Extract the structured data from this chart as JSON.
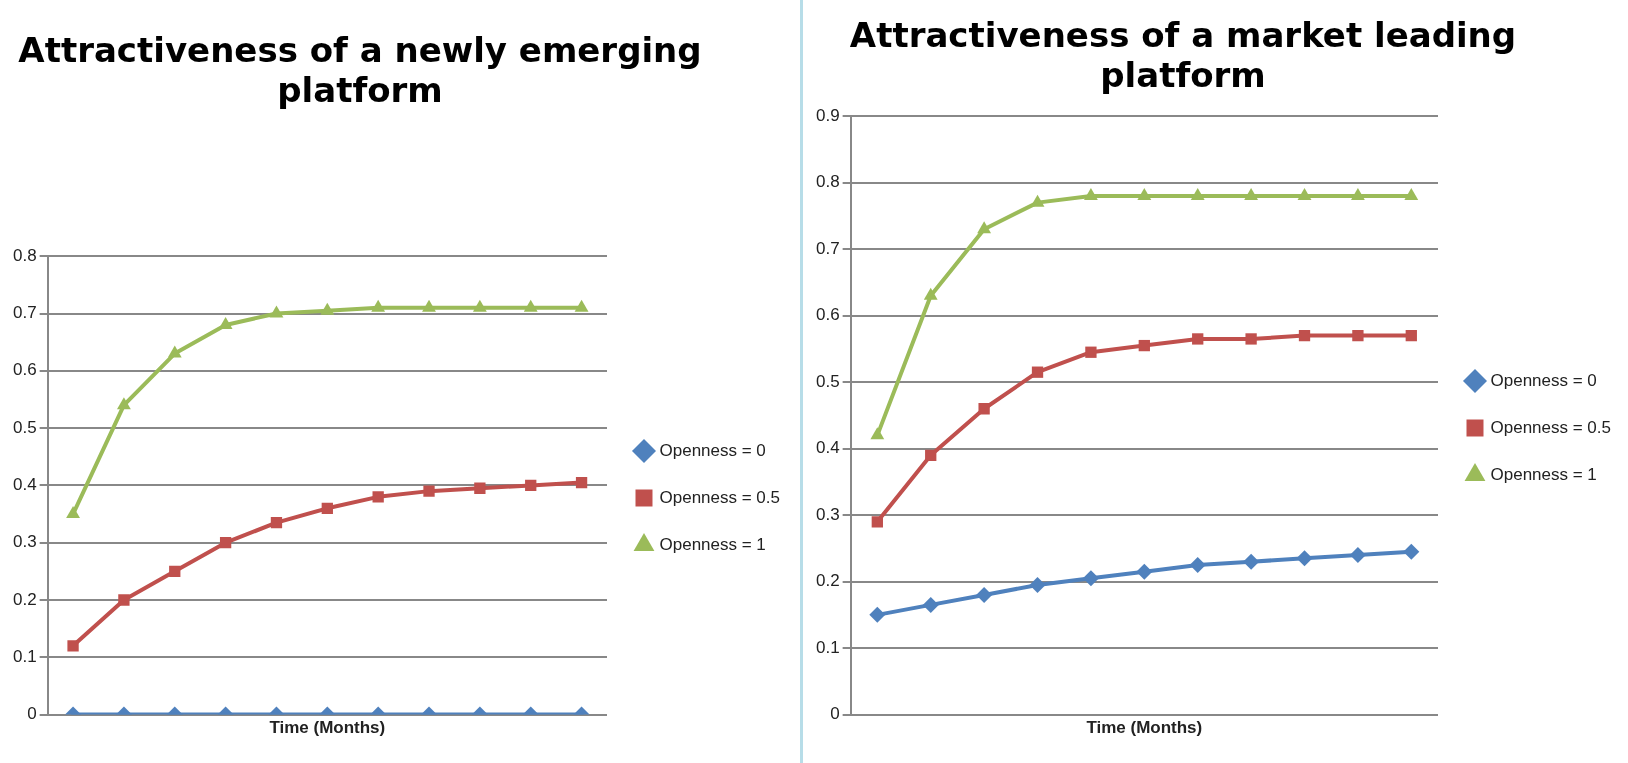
{
  "chart_data": [
    {
      "type": "line",
      "title": "Attractiveness of a newly emerging platform",
      "xlabel": "Time (Months)",
      "categories": [
        null,
        null,
        null,
        null,
        null,
        null,
        null,
        null,
        null,
        null,
        null
      ],
      "ylim": [
        0,
        0.8
      ],
      "yticks": [
        0,
        0.1,
        0.2,
        0.3,
        0.4,
        0.5,
        0.6,
        0.7,
        0.8
      ],
      "grid": "y",
      "legend": "right",
      "tick_labels": "y",
      "series": [
        {
          "name": "Openness = 0",
          "color": "#4f81bd",
          "marker": "diamond",
          "values": [
            0,
            0,
            0,
            0,
            0,
            0,
            0,
            0,
            0,
            0,
            0
          ]
        },
        {
          "name": "Openness = 0.5",
          "color": "#c0504d",
          "marker": "square",
          "values": [
            0.12,
            0.2,
            0.25,
            0.3,
            0.335,
            0.36,
            0.38,
            0.39,
            0.395,
            0.4,
            0.405
          ]
        },
        {
          "name": "Openness = 1",
          "color": "#9bbb59",
          "marker": "triangle",
          "values": [
            0.35,
            0.54,
            0.63,
            0.68,
            0.7,
            0.705,
            0.71,
            0.71,
            0.71,
            0.71,
            0.71
          ]
        }
      ]
    },
    {
      "type": "line",
      "title": "Attractiveness of a market leading platform",
      "xlabel": "Time (Months)",
      "categories": [
        null,
        null,
        null,
        null,
        null,
        null,
        null,
        null,
        null,
        null,
        null
      ],
      "ylim": [
        0,
        0.9
      ],
      "yticks": [
        0,
        0.1,
        0.2,
        0.3,
        0.4,
        0.5,
        0.6,
        0.7,
        0.8,
        0.9
      ],
      "grid": "y",
      "legend": "right",
      "tick_labels": "y",
      "series": [
        {
          "name": "Openness = 0",
          "color": "#4f81bd",
          "marker": "diamond",
          "values": [
            0.15,
            0.165,
            0.18,
            0.195,
            0.205,
            0.215,
            0.225,
            0.23,
            0.235,
            0.24,
            0.245
          ]
        },
        {
          "name": "Openness = 0.5",
          "color": "#c0504d",
          "marker": "square",
          "values": [
            0.29,
            0.39,
            0.46,
            0.515,
            0.545,
            0.555,
            0.565,
            0.565,
            0.57,
            0.57,
            0.57
          ]
        },
        {
          "name": "Openness = 1",
          "color": "#9bbb59",
          "marker": "triangle",
          "values": [
            0.42,
            0.63,
            0.73,
            0.77,
            0.78,
            0.78,
            0.78,
            0.78,
            0.78,
            0.78,
            0.78
          ]
        }
      ]
    }
  ]
}
